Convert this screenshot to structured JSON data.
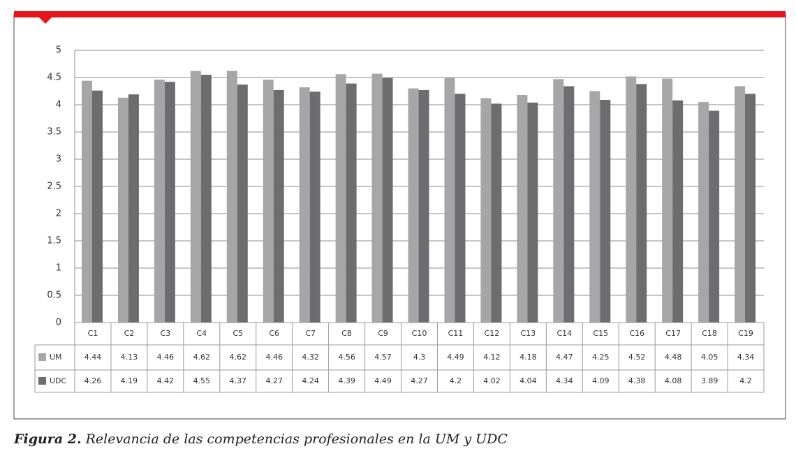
{
  "chart_data": {
    "type": "bar",
    "figure_label": "Figura 2.",
    "title": "Relevancia de las competencias profesionales en la UM y UDC",
    "categories": [
      "C1",
      "C2",
      "C3",
      "C4",
      "C5",
      "C6",
      "C7",
      "C8",
      "C9",
      "C10",
      "C11",
      "C12",
      "C13",
      "C14",
      "C15",
      "C16",
      "C17",
      "C18",
      "C19"
    ],
    "series": [
      {
        "name": "UM",
        "color": "#a6a6a6",
        "values": [
          4.44,
          4.13,
          4.46,
          4.62,
          4.62,
          4.46,
          4.32,
          4.56,
          4.57,
          4.3,
          4.49,
          4.12,
          4.18,
          4.47,
          4.25,
          4.52,
          4.48,
          4.05,
          4.34
        ]
      },
      {
        "name": "UDC",
        "color": "#6d6d6f",
        "values": [
          4.26,
          4.19,
          4.42,
          4.55,
          4.37,
          4.27,
          4.24,
          4.39,
          4.49,
          4.27,
          4.2,
          4.02,
          4.04,
          4.34,
          4.09,
          4.38,
          4.08,
          3.89,
          4.2
        ]
      }
    ],
    "ylim": [
      0,
      5
    ],
    "yticks": [
      0,
      0.5,
      1,
      1.5,
      2,
      2.5,
      3,
      3.5,
      4,
      4.5,
      5
    ],
    "grid": true,
    "data_table": true
  }
}
